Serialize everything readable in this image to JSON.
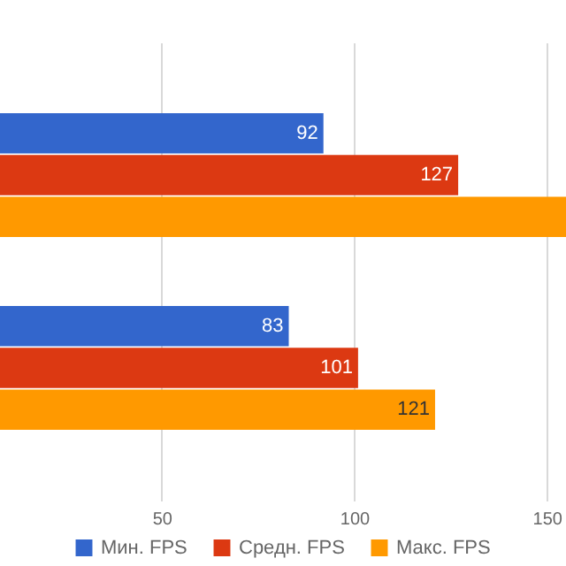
{
  "chart_data": {
    "type": "bar",
    "orientation": "horizontal",
    "categories": [
      null,
      null
    ],
    "series": [
      {
        "name": "Мин. FPS",
        "color": "#3366cc",
        "values": [
          92,
          83
        ],
        "value_labels": [
          "92",
          "83"
        ]
      },
      {
        "name": "Средн. FPS",
        "color": "#dc3912",
        "values": [
          127,
          101
        ],
        "value_labels": [
          "127",
          "101"
        ]
      },
      {
        "name": "Макс. FPS",
        "color": "#ff9900",
        "values": [
          155,
          121
        ],
        "value_labels": [
          null,
          "121"
        ]
      }
    ],
    "xlim": [
      8,
      155
    ],
    "xticks": [
      50,
      100,
      150
    ],
    "grid": "x",
    "legend": "bottom"
  }
}
